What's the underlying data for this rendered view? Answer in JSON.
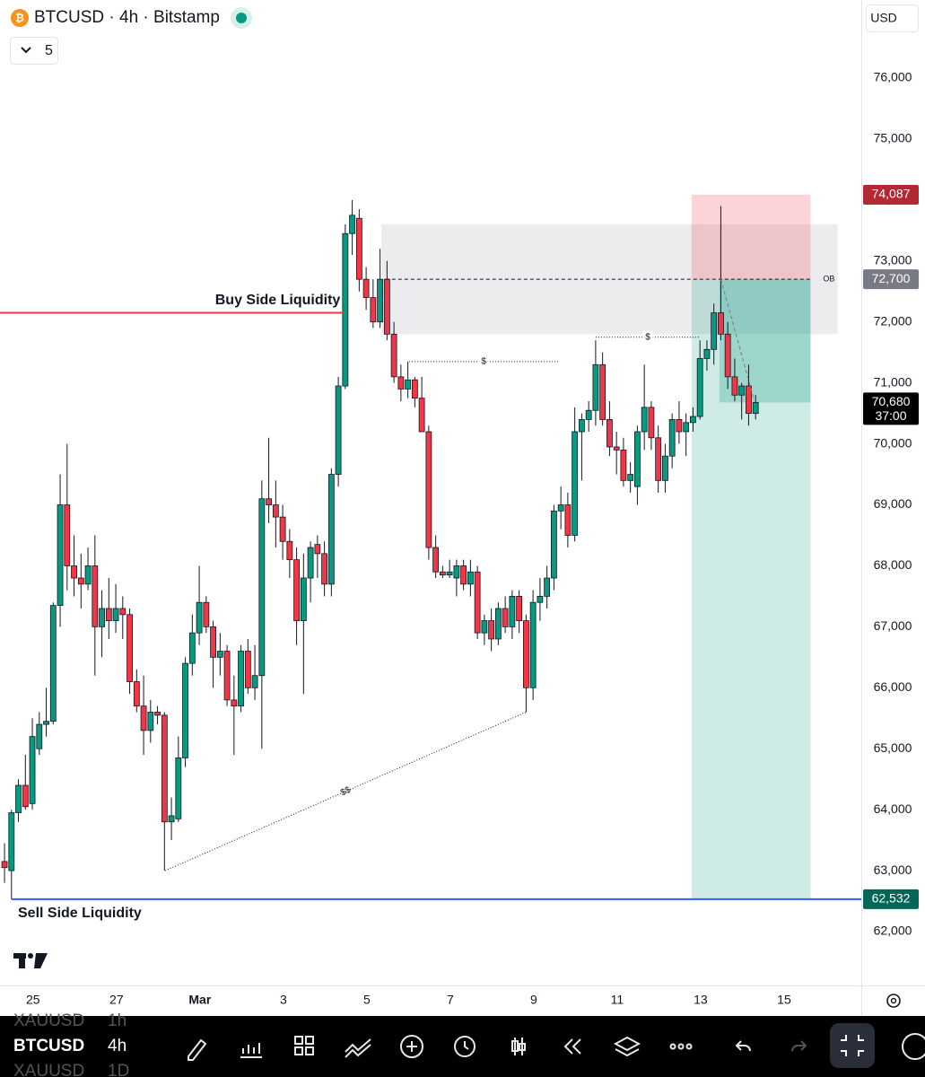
{
  "header": {
    "title": "BTCUSD · 4h · Bitstamp",
    "indicator_count": 5,
    "currency": "USD"
  },
  "toolbar": {
    "symbol": "BTCUSD",
    "interval": "4h",
    "prev_symbol": "XAUUSD",
    "prev_interval": "1h",
    "next_symbol": "XAUUSD",
    "next_interval": "1D"
  },
  "chart_data": {
    "type": "candlestick",
    "up_color": "#089981",
    "down_color": "#f23645",
    "xlim": [
      -0.65,
      123.2
    ],
    "ylim": [
      61117,
      77281
    ],
    "xticks": [
      {
        "value": 4.1,
        "label": "25"
      },
      {
        "value": 16.1,
        "label": "27"
      },
      {
        "value": 28.1,
        "label": "Mar"
      },
      {
        "value": 40.1,
        "label": "3"
      },
      {
        "value": 52.1,
        "label": "5"
      },
      {
        "value": 64.1,
        "label": "7"
      },
      {
        "value": 76.1,
        "label": "9"
      },
      {
        "value": 88.1,
        "label": "11"
      },
      {
        "value": 100.1,
        "label": "13"
      },
      {
        "value": 112.1,
        "label": "15"
      }
    ],
    "yticks": [
      {
        "value": 62000,
        "label": "62,000"
      },
      {
        "value": 63000,
        "label": "63,000"
      },
      {
        "value": 64000,
        "label": "64,000"
      },
      {
        "value": 65000,
        "label": "65,000"
      },
      {
        "value": 66000,
        "label": "66,000"
      },
      {
        "value": 67000,
        "label": "67,000"
      },
      {
        "value": 68000,
        "label": "68,000"
      },
      {
        "value": 69000,
        "label": "69,000"
      },
      {
        "value": 70000,
        "label": "70,000"
      },
      {
        "value": 71000,
        "label": "71,000"
      },
      {
        "value": 72000,
        "label": "72,000"
      },
      {
        "value": 73000,
        "label": "73,000"
      },
      {
        "value": 74000,
        "label": "74,000"
      },
      {
        "value": 75000,
        "label": "75,000"
      },
      {
        "value": 76000,
        "label": "76,000"
      }
    ],
    "open": [
      63150,
      63000,
      63950,
      64400,
      64100,
      65000,
      65400,
      65450,
      67350,
      69000,
      68000,
      67800,
      67700,
      68000,
      67000,
      67300,
      67100,
      67300,
      67200,
      66100,
      65700,
      65300,
      65600,
      65550,
      63800,
      63850,
      64850,
      66400,
      66900,
      67400,
      67000,
      66500,
      66600,
      65800,
      65700,
      66600,
      66000,
      66200,
      69100,
      69000,
      68800,
      68400,
      68100,
      67100,
      67800,
      68350,
      68200,
      67700,
      69500,
      70950,
      73450,
      73700,
      72700,
      72400,
      72000,
      72700,
      71800,
      71100,
      70900,
      71050,
      70750,
      70200,
      68300,
      67900,
      67850,
      67800,
      68000,
      67700,
      67900,
      66900,
      67100,
      66800,
      67300,
      67000,
      67500,
      67100,
      66000,
      67400,
      67500,
      67800,
      68900,
      69000,
      68500,
      70200,
      70400,
      70550,
      71300,
      70400,
      69950,
      69900,
      69400,
      69300,
      70200,
      70600,
      70100,
      69400,
      69800,
      70400,
      70200,
      70350,
      70450,
      71400,
      71550,
      72150,
      71800,
      71100,
      70800,
      70950,
      70500
    ],
    "high": [
      63450,
      64000,
      64500,
      64900,
      65500,
      65600,
      66000,
      67400,
      69500,
      70000,
      68500,
      68200,
      68300,
      68500,
      67600,
      67800,
      67700,
      67500,
      67300,
      66300,
      66200,
      65800,
      65700,
      65600,
      64200,
      65200,
      66500,
      67200,
      68000,
      67500,
      67100,
      66900,
      66700,
      66200,
      66700,
      66800,
      66700,
      69400,
      70100,
      69400,
      69000,
      68600,
      68300,
      68200,
      68400,
      68500,
      68400,
      69600,
      71100,
      73600,
      74000,
      73850,
      72900,
      72700,
      73200,
      73000,
      72000,
      71300,
      71350,
      71100,
      71100,
      70300,
      68500,
      68000,
      68100,
      68100,
      68100,
      68100,
      68000,
      67200,
      67300,
      67400,
      67500,
      67600,
      67600,
      67200,
      67600,
      67800,
      68000,
      69000,
      69300,
      69200,
      70600,
      70500,
      70700,
      71700,
      71500,
      70700,
      70200,
      70100,
      69700,
      70300,
      71300,
      70700,
      70300,
      70000,
      70500,
      70700,
      70500,
      70600,
      71700,
      71700,
      72300,
      73900,
      72000,
      71400,
      71000,
      71300,
      70800
    ],
    "low": [
      62800,
      62532,
      63800,
      64000,
      64000,
      64900,
      65200,
      65400,
      67000,
      67600,
      67500,
      67300,
      67600,
      66200,
      66500,
      66800,
      66900,
      66800,
      65900,
      65600,
      64900,
      65100,
      65400,
      63000,
      63500,
      63800,
      64700,
      66200,
      66700,
      66900,
      66000,
      66200,
      65700,
      64900,
      65600,
      65900,
      65800,
      65000,
      68700,
      68300,
      68100,
      67800,
      66700,
      65900,
      67400,
      67800,
      67500,
      67500,
      69300,
      70900,
      73100,
      72500,
      72200,
      71900,
      71900,
      71700,
      71000,
      70700,
      70750,
      70600,
      70200,
      68100,
      67800,
      67800,
      67800,
      67500,
      67600,
      67500,
      66800,
      66700,
      66600,
      66700,
      66900,
      66800,
      66900,
      65600,
      65800,
      67100,
      67300,
      67600,
      68600,
      68300,
      68400,
      69400,
      70200,
      70300,
      70300,
      69800,
      69500,
      69300,
      69200,
      69000,
      69900,
      69900,
      69200,
      69200,
      69600,
      70000,
      69800,
      70200,
      70400,
      71200,
      71300,
      71700,
      70900,
      70700,
      70400,
      70300,
      70400
    ],
    "close": [
      63050,
      63950,
      64400,
      64050,
      65200,
      65400,
      65450,
      67350,
      69000,
      68000,
      67800,
      67700,
      68000,
      67000,
      67300,
      67100,
      67300,
      67200,
      66100,
      65700,
      65300,
      65600,
      65550,
      63800,
      63900,
      64850,
      66400,
      66900,
      67400,
      67000,
      66500,
      66600,
      65800,
      65700,
      66600,
      66000,
      66200,
      69100,
      69000,
      68800,
      68400,
      68100,
      67100,
      67800,
      68300,
      68200,
      67700,
      69500,
      70950,
      73450,
      73750,
      72700,
      72400,
      72000,
      72700,
      71800,
      71100,
      70900,
      71050,
      70750,
      70200,
      68300,
      67900,
      67850,
      67900,
      68000,
      67700,
      67900,
      66900,
      67100,
      66800,
      67300,
      67000,
      67500,
      67100,
      66000,
      67400,
      67500,
      67800,
      68900,
      69000,
      68500,
      70200,
      70400,
      70550,
      71300,
      70400,
      69950,
      69900,
      69400,
      69500,
      70200,
      70600,
      70100,
      69400,
      69800,
      70400,
      70200,
      70350,
      70450,
      71400,
      71550,
      72150,
      71800,
      71100,
      70800,
      70950,
      70500,
      70680
    ],
    "levels": [
      {
        "label": "Buy Side Liquidity",
        "value": 72150,
        "color": "#f23645",
        "from": -0.65,
        "to": 48.8
      },
      {
        "label": "Sell Side Liquidity",
        "value": 62532,
        "color": "#2962ff",
        "from": 1,
        "to": 123.2
      }
    ],
    "zone": {
      "top": 73600,
      "bottom": 71800,
      "from": 54.2,
      "to": 119.8
    },
    "ob": {
      "label": "OB",
      "value": 72700,
      "from": 54.8,
      "to": 115.9
    },
    "dotted": [
      {
        "label": "$",
        "value": 71350,
        "from": 58.2,
        "to": 79.6
      },
      {
        "label": "$",
        "value": 71750,
        "from": 85,
        "to": 100
      }
    ],
    "sweep": {
      "label": "$$",
      "x": [
        23.1,
        75
      ],
      "y": [
        63000,
        65600
      ]
    },
    "position": {
      "entry": 72700,
      "stop": 74087,
      "target": 62532,
      "current": 70680,
      "from": 98.8,
      "to": 115.9,
      "fill_from": 102.8
    },
    "projection": {
      "x": [
        103,
        107.7
      ],
      "y": [
        72700,
        70750
      ]
    },
    "price_tags": [
      {
        "value": 74087,
        "label": "74,087",
        "color": "#b22833"
      },
      {
        "value": 72700,
        "label": "72,700",
        "color": "#787b86"
      },
      {
        "value": 70680,
        "label": "70,680",
        "color": "#000000"
      },
      {
        "value": 62532,
        "label": "62,532",
        "color": "#056656"
      }
    ],
    "countdown": "37:00"
  }
}
